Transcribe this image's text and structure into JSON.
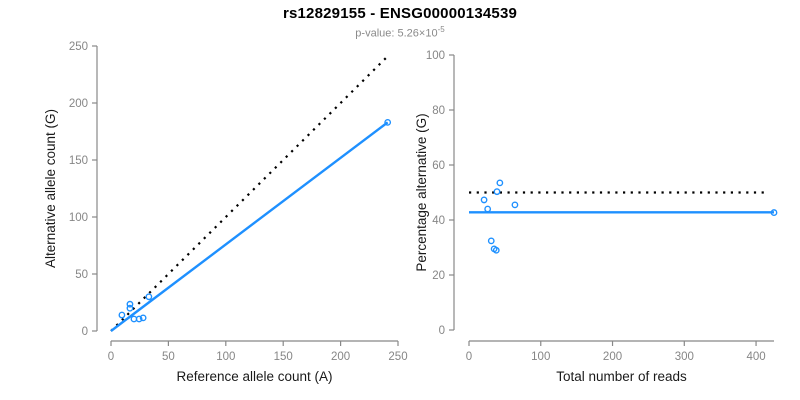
{
  "header": {
    "title": "rs12829155 - ENSG00000134539",
    "subtitle_prefix": "p-value: 5.26×10",
    "subtitle_exponent": "-5"
  },
  "colors": {
    "accent_blue": "#1E90FF",
    "line_black": "#000000",
    "axis_gray": "#888888",
    "tick_label_gray": "#868686",
    "axis_title_black": "#1a1a1a"
  },
  "chart_data": [
    {
      "type": "scatter",
      "xlabel": "Reference allele count (A)",
      "ylabel": "Alternative allele count (G)",
      "xlim": [
        0,
        250
      ],
      "ylim": [
        0,
        250
      ],
      "xticks": [
        0,
        50,
        100,
        150,
        200,
        250
      ],
      "yticks": [
        0,
        50,
        100,
        150,
        200,
        250
      ],
      "grid": false,
      "points": [
        [
          16.5,
          23.5
        ],
        [
          16.5,
          20
        ],
        [
          9.5,
          14
        ],
        [
          20,
          10.5
        ],
        [
          24.5,
          10.5
        ],
        [
          28,
          11.5
        ],
        [
          33,
          30
        ],
        [
          241,
          183
        ]
      ],
      "lines": [
        {
          "name": "identity-line",
          "style": "dotted",
          "color": "#000000",
          "from": [
            0,
            0
          ],
          "to": [
            240,
            240
          ]
        },
        {
          "name": "regression-line",
          "style": "solid",
          "color": "#1E90FF",
          "from": [
            0,
            0
          ],
          "to": [
            241,
            183
          ]
        }
      ]
    },
    {
      "type": "scatter",
      "xlabel": "Total number of reads",
      "ylabel": "Percentage alternative (G)",
      "xlim": [
        0,
        425
      ],
      "ylim": [
        0,
        100
      ],
      "xticks": [
        0,
        100,
        200,
        300,
        400
      ],
      "yticks": [
        0,
        20,
        40,
        60,
        80,
        100
      ],
      "grid": false,
      "points": [
        [
          43,
          53.5
        ],
        [
          39,
          50.3
        ],
        [
          21,
          47.3
        ],
        [
          26,
          44
        ],
        [
          64,
          45.5
        ],
        [
          31,
          32.4
        ],
        [
          35,
          29.5
        ],
        [
          38,
          29
        ],
        [
          425,
          42.7
        ]
      ],
      "lines": [
        {
          "name": "fifty-percent-line",
          "style": "dotted",
          "color": "#000000",
          "from": [
            0,
            50
          ],
          "to": [
            417,
            50
          ]
        },
        {
          "name": "mean-percentage-line",
          "style": "solid",
          "color": "#1E90FF",
          "from": [
            0,
            42.8
          ],
          "to": [
            425,
            42.8
          ]
        }
      ]
    }
  ]
}
